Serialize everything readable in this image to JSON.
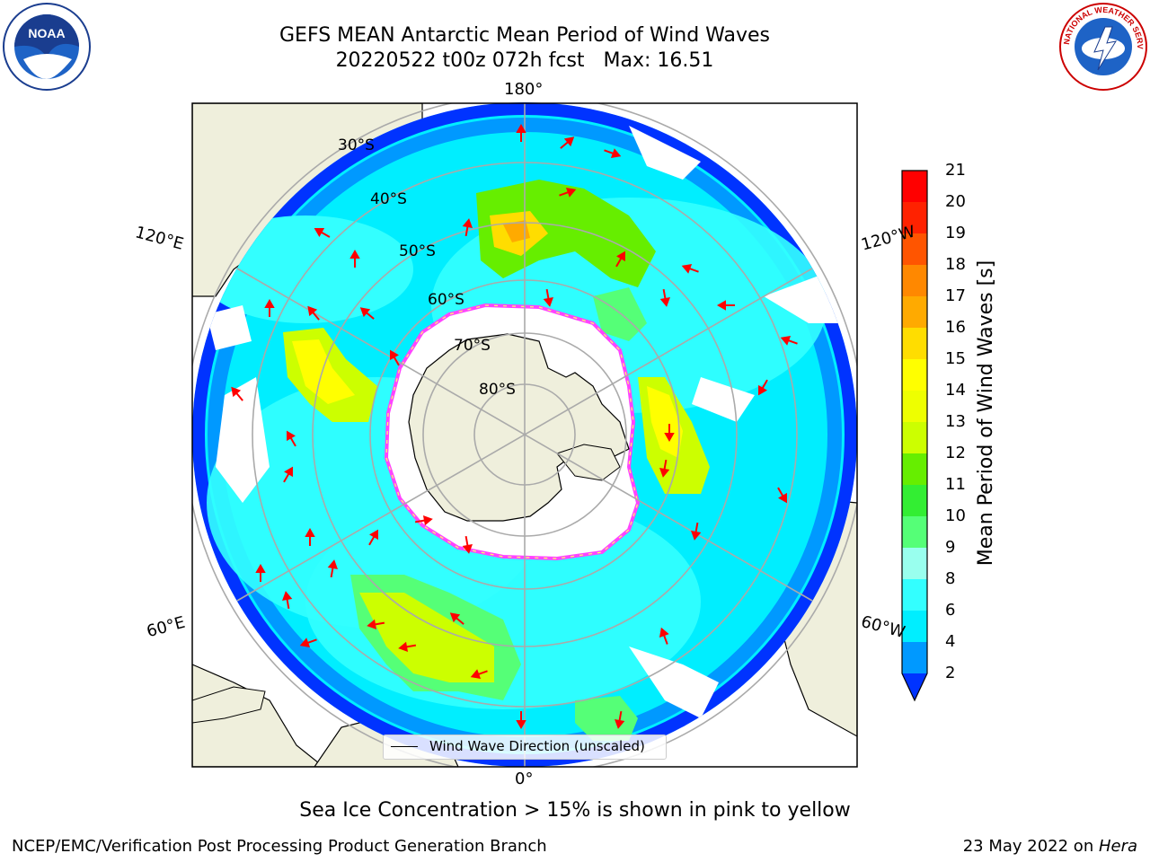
{
  "title": {
    "line1": "GEFS MEAN Antarctic Mean Period of Wind Waves",
    "line2_date": "20220522 t00z 072h fcst",
    "line2_max": "Max: 16.51"
  },
  "logos": {
    "left": "noaa-logo",
    "left_text": "NOAA",
    "right": "national-weather-service-logo",
    "right_text": "NATIONAL WEATHER SERVICE"
  },
  "map": {
    "projection": "south-polar-stereographic",
    "longitude_labels": [
      "180°",
      "120°E",
      "120°W",
      "60°E",
      "60°W",
      "0°"
    ],
    "latitude_labels": [
      "30°S",
      "40°S",
      "50°S",
      "60°S",
      "70°S",
      "80°S"
    ],
    "land_color": "#efefdc",
    "ocean_no_data_color": "#ffffff",
    "arrow_color": "#ff0000",
    "sea_ice_edge_colors": [
      "#ff44ff",
      "#ffff66"
    ]
  },
  "legend": {
    "entry": "Wind Wave Direction (unscaled)"
  },
  "colorbar": {
    "label": "Mean Period of Wind Waves [s]",
    "ticks": [
      "2",
      "4",
      "6",
      "8",
      "9",
      "10",
      "11",
      "12",
      "13",
      "14",
      "15",
      "16",
      "17",
      "18",
      "19",
      "20",
      "21"
    ],
    "colors": [
      "#0033ff",
      "#0099ff",
      "#00eeff",
      "#33ffff",
      "#99ffee",
      "#55ff77",
      "#33ee33",
      "#66ee00",
      "#ccff00",
      "#eeff00",
      "#ffff00",
      "#ffdd00",
      "#ffaa00",
      "#ff8800",
      "#ff5500",
      "#ff2200",
      "#ff0000"
    ],
    "extend": "min"
  },
  "caption": "Sea Ice Concentration > 15% is shown in pink to yellow",
  "footer": {
    "left": "NCEP/EMC/Verification Post Processing Product Generation Branch",
    "right_date": "23 May 2022 on ",
    "right_host": "Hera"
  }
}
